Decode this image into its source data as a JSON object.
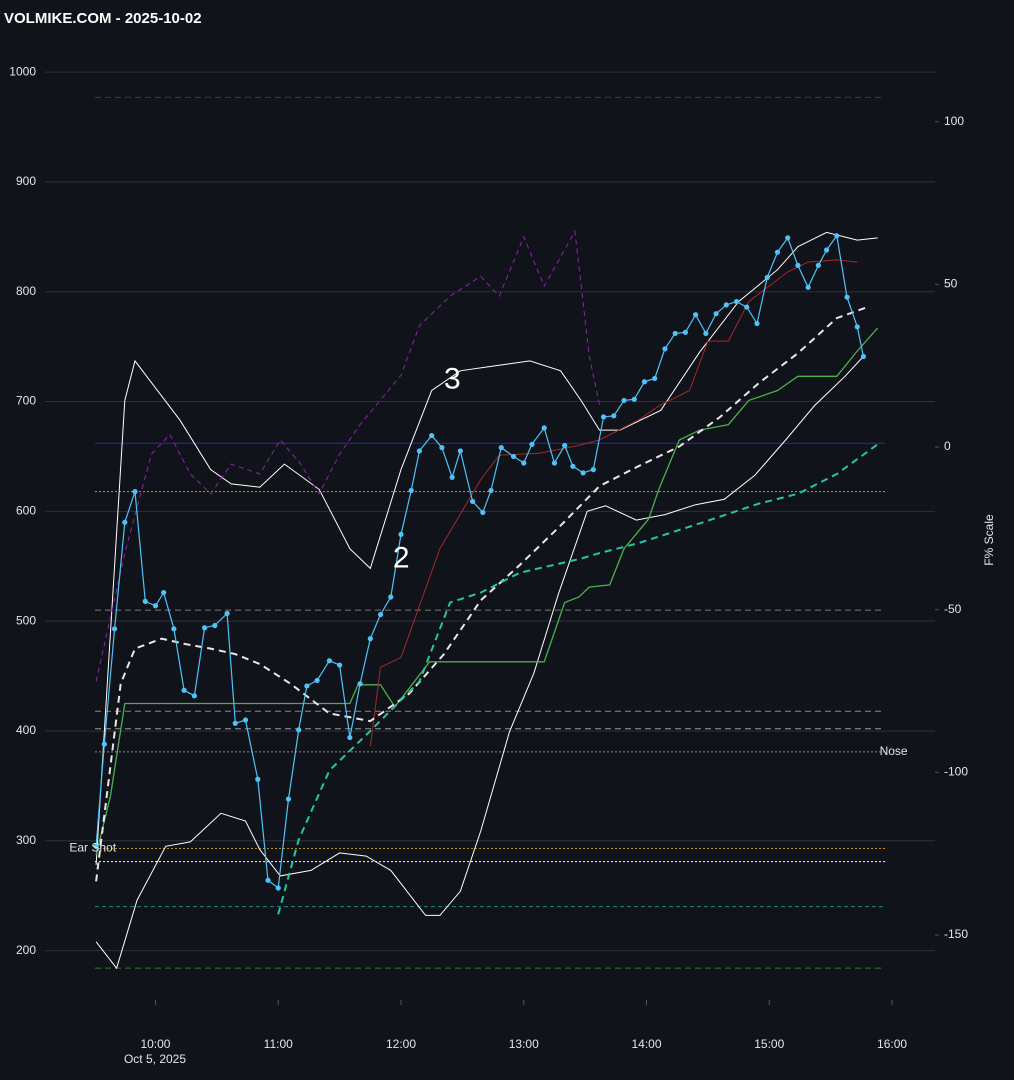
{
  "chart_data": {
    "type": "line",
    "title": "VOLMIKE.COM  - 2025-10-02",
    "date_label": "Oct 5, 2025",
    "y2_label": "F% Scale",
    "annotations": [
      {
        "text": "Nose",
        "x": 950,
        "y": 381
      },
      {
        "text": "Ear Shot",
        "x": 554,
        "y": 293
      },
      {
        "text": "2",
        "x": 716,
        "y": 556
      },
      {
        "text": "3",
        "x": 741,
        "y": 719
      }
    ],
    "xlim": [
      546,
      981
    ],
    "xticks": [
      {
        "value": 600,
        "label": "10:00"
      },
      {
        "value": 660,
        "label": "11:00"
      },
      {
        "value": 720,
        "label": "12:00"
      },
      {
        "value": 780,
        "label": "13:00"
      },
      {
        "value": 840,
        "label": "14:00"
      },
      {
        "value": 900,
        "label": "15:00"
      },
      {
        "value": 960,
        "label": "16:00"
      }
    ],
    "ylim": [
      155,
      1011
    ],
    "yticks": [
      200,
      300,
      400,
      500,
      600,
      700,
      800,
      900,
      1000
    ],
    "y2lim": [
      -170,
      119
    ],
    "y2ticks": [
      -150,
      -100,
      -50,
      0,
      50,
      100
    ],
    "grid": true,
    "hlines": [
      {
        "value": 977,
        "color": "#8b1a1a",
        "dash": "6 4"
      },
      {
        "value": 618,
        "color": "#c8a600",
        "dash": "2 2"
      },
      {
        "value": 662,
        "color": "#2a2aa8",
        "dash": ""
      },
      {
        "value": 510,
        "color": "#777777",
        "dash": "6 4"
      },
      {
        "value": 418,
        "color": "#888888",
        "dash": "6 4"
      },
      {
        "value": 402,
        "color": "#999999",
        "dash": "6 4"
      },
      {
        "value": 381,
        "color": "#8a8aa8",
        "dash": "2 2"
      },
      {
        "value": 293,
        "color": "#b8900a",
        "dash": "2 2"
      },
      {
        "value": 281,
        "color": "#ffffff",
        "dash": "2 2"
      },
      {
        "value": 240,
        "color": "#1f8a80",
        "dash": "4 3"
      },
      {
        "value": 184,
        "color": "#2e7d32",
        "dash": "6 4"
      }
    ],
    "series": [
      {
        "color": "#ffffff",
        "width": 1,
        "dash": "",
        "x": [
          571,
          581,
          591,
          605,
          617,
          632,
          644,
          651,
          661,
          676,
          690,
          703,
          715,
          732,
          739,
          749,
          759,
          773,
          785,
          797,
          811,
          820,
          835,
          849,
          864,
          878,
          893,
          908,
          922,
          937,
          946
        ],
        "values": [
          208,
          184,
          246,
          295,
          299,
          325,
          318,
          292,
          268,
          273,
          289,
          286,
          273,
          232,
          232,
          254,
          309,
          399,
          453,
          525,
          600,
          605,
          592,
          597,
          606,
          611,
          633,
          665,
          696,
          723,
          741
        ]
      },
      {
        "color": "#ffffff",
        "width": 1,
        "dash": "",
        "x": [
          571,
          585,
          590,
          612,
          627,
          637,
          651,
          663,
          680,
          695,
          705,
          720,
          735,
          749,
          764,
          783,
          798,
          808,
          817,
          827,
          847,
          866,
          885,
          904,
          914,
          928,
          943,
          953
        ],
        "values": [
          278,
          701,
          737,
          683,
          638,
          625,
          622,
          643,
          620,
          566,
          548,
          638,
          710,
          728,
          732,
          737,
          728,
          701,
          674,
          674,
          692,
          745,
          791,
          820,
          841,
          854,
          847,
          849
        ]
      },
      {
        "color": "#4caf50",
        "width": 1.3,
        "dash": "",
        "x": [
          571,
          578,
          585,
          695,
          699,
          710,
          717,
          734,
          790,
          800,
          807,
          812,
          822,
          829,
          841,
          846,
          856,
          866,
          880,
          890,
          904,
          914,
          933,
          943,
          953
        ],
        "values": [
          287,
          341,
          425,
          425,
          442,
          442,
          422,
          463,
          463,
          517,
          522,
          531,
          533,
          566,
          593,
          620,
          665,
          674,
          679,
          701,
          710,
          723,
          723,
          746,
          767
        ]
      },
      {
        "color": "#a32a2a",
        "width": 1,
        "dash": "",
        "x": [
          705,
          710,
          720,
          739,
          759,
          768,
          788,
          807,
          817,
          836,
          846,
          861,
          870,
          880,
          890,
          909,
          919,
          933,
          943
        ],
        "values": [
          386,
          458,
          467,
          566,
          629,
          651,
          653,
          660,
          665,
          683,
          696,
          710,
          755,
          755,
          791,
          818,
          827,
          829,
          827
        ]
      },
      {
        "color": "#e8e8e8",
        "width": 2,
        "dash": "7 5",
        "x": [
          571,
          583,
          590,
          603,
          615,
          627,
          639,
          651,
          666,
          685,
          705,
          724,
          741,
          759,
          778,
          798,
          817,
          836,
          856,
          876,
          895,
          914,
          933,
          948
        ],
        "values": [
          263,
          443,
          475,
          484,
          479,
          475,
          470,
          461,
          443,
          416,
          409,
          434,
          470,
          519,
          551,
          587,
          623,
          641,
          659,
          686,
          717,
          744,
          776,
          786
        ]
      },
      {
        "color": "#26c6a0",
        "width": 2,
        "dash": "7 5",
        "x": [
          660,
          670,
          685,
          705,
          729,
          744,
          759,
          778,
          808,
          817,
          836,
          866,
          895,
          914,
          933,
          953
        ],
        "values": [
          233,
          301,
          364,
          400,
          445,
          517,
          526,
          544,
          557,
          562,
          571,
          589,
          607,
          616,
          634,
          661
        ]
      },
      {
        "color": "#8e24aa",
        "width": 1,
        "dash": "5 4",
        "x": [
          571,
          585,
          598,
          607,
          617,
          627,
          637,
          651,
          661,
          671,
          680,
          690,
          700,
          720,
          729,
          744,
          759,
          768,
          780,
          790,
          805,
          812,
          817
        ],
        "values": [
          445,
          562,
          652,
          670,
          634,
          616,
          643,
          634,
          665,
          643,
          616,
          652,
          679,
          724,
          769,
          796,
          814,
          796,
          850,
          805,
          855,
          742,
          697
        ]
      },
      {
        "color": "#4fc3f7",
        "width": 1.2,
        "dash": "",
        "markers": true,
        "x": [
          571,
          575,
          580,
          585,
          590,
          595,
          600,
          604,
          609,
          614,
          619,
          624,
          629,
          635,
          639,
          644,
          650,
          655,
          660,
          665,
          670,
          674,
          679,
          685,
          690,
          695,
          700,
          705,
          710,
          715,
          720,
          725,
          729,
          735,
          740,
          745,
          749,
          755,
          760,
          764,
          769,
          775,
          780,
          784,
          790,
          795,
          800,
          804,
          809,
          814,
          819,
          824,
          829,
          834,
          839,
          844,
          849,
          854,
          859,
          864,
          869,
          874,
          879,
          884,
          889,
          894,
          899,
          904,
          909,
          914,
          919,
          924,
          928,
          933,
          938,
          943,
          946
        ],
        "values": [
          295,
          388,
          493,
          590,
          618,
          518,
          514,
          526,
          493,
          437,
          432,
          494,
          496,
          507,
          407,
          410,
          356,
          264,
          257,
          338,
          401,
          441,
          446,
          464,
          460,
          394,
          443,
          484,
          506,
          522,
          579,
          619,
          655,
          669,
          658,
          631,
          655,
          609,
          599,
          619,
          658,
          650,
          644,
          661,
          676,
          644,
          660,
          641,
          635,
          638,
          686,
          687,
          701,
          702,
          718,
          721,
          748,
          762,
          763,
          779,
          762,
          780,
          788,
          791,
          786,
          771,
          813,
          836,
          849,
          824,
          804,
          824,
          838,
          851,
          795,
          768,
          741
        ]
      }
    ]
  }
}
